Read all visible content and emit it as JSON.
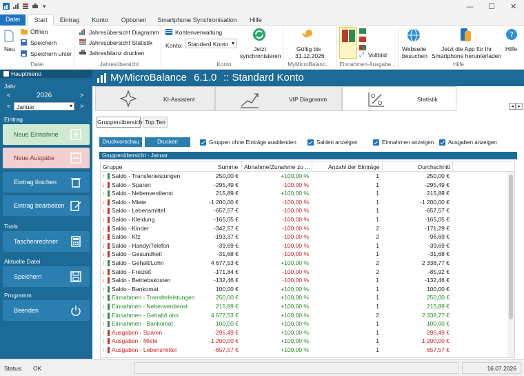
{
  "ribbon_tabs": [
    "Datei",
    "Start",
    "Eintrag",
    "Konto",
    "Optionen",
    "Smartphone Synchronisation",
    "Hilfe"
  ],
  "ribbon": {
    "neu": "Neu",
    "oeffnen": "Öffnen",
    "speichern": "Speichern",
    "speichern_unter": "Speichern unter",
    "grp_datei": "Datei",
    "jahr_diagramm": "Jahresübersicht Diagramm",
    "jahr_statistik": "Jahresübersicht Statistik",
    "jahresbilanz": "Jahresbilanz drucken",
    "grp_jahr": "Jahresübersicht",
    "kontenverwaltung": "Kontenverwaltung",
    "konto_label": "Konto:",
    "konto_value": "Standard Konto",
    "sync_1": "Jetzt",
    "sync_2": "synchronisieren",
    "grp_konto": "Konto",
    "gueltig_1": "Gültig bis",
    "gueltig_2": "31.12.2026",
    "grp_mmb": "MyMicroBalanc...",
    "vollbild": "Vollbild",
    "grp_ein": "Einnahmen-Ausgabe...",
    "webseite_1": "Webseite",
    "webseite_2": "besuchen",
    "app_1": "Jetzt die App für Ihr",
    "app_2": "Smartphone herunterladen",
    "hilfe": "Hilfe",
    "grp_hilfe": "Hilfe"
  },
  "sidebar": {
    "hauptmenue": "Hauptmenü",
    "jahr_label": "Jahr",
    "jahr_value": "2026",
    "monat_value": "Januar",
    "eintrag_label": "Eintrag",
    "neue_einnahme": "Neue Einnahme",
    "neue_ausgabe": "Neue Ausgabe",
    "eintrag_loeschen": "Eintrag löschen",
    "eintrag_bearbeiten": "Eintrag bearbeiten",
    "tools_label": "Tools",
    "taschenrechner": "Taschenrechner",
    "aktuelle_datei_label": "Aktuelle Datei",
    "speichern": "Speichern",
    "programm_label": "Programm",
    "beenden": "Beenden"
  },
  "banner": {
    "title": "MyMicroBalance",
    "version": "6.1.0",
    "account": ":: Standard Konto"
  },
  "cards": [
    "KI-Assistent",
    "VIP Diagramm",
    "Statistik"
  ],
  "subtabs": [
    "Gruppenübersicht",
    "Top Ten"
  ],
  "toolbar": {
    "druckvorschau": "Druckvorschau",
    "drucken": "Drucken",
    "opt_gruppen": "Gruppen ohne Einträge ausblenden",
    "opt_salden": "Salden anzeigen",
    "opt_einnahmen": "Einnahmen anzeigen",
    "opt_ausgaben": "Ausgaben anzeigen"
  },
  "table": {
    "caption": "Gruppenübersicht - Januar",
    "headers": [
      "Gruppe",
      "Summe",
      "Abnahme/Zunahme zu ...",
      "Anzahl der Einträge",
      "Durchschnitt"
    ],
    "rows": [
      {
        "arrow": "up",
        "color": "#2e8b57",
        "name": "Saldo - Transferleistungen",
        "sum": "250,00 €",
        "change": "+100,00 %",
        "count": "1",
        "avg": "250,00 €",
        "tone": "dark"
      },
      {
        "arrow": "down",
        "color": "#c0392b",
        "name": "Saldo - Sparen",
        "sum": "-295,49 €",
        "change": "-100,00 %",
        "count": "1",
        "avg": "-295,49 €",
        "tone": "dark"
      },
      {
        "arrow": "up",
        "color": "#2e8b57",
        "name": "Saldo - Nebenverdienst",
        "sum": "215,89 €",
        "change": "+100,00 %",
        "count": "1",
        "avg": "215,89 €",
        "tone": "dark"
      },
      {
        "arrow": "down",
        "color": "#c0392b",
        "name": "Saldo - Miete",
        "sum": "-1 200,00 €",
        "change": "-100,00 %",
        "count": "1",
        "avg": "-1 200,00 €",
        "tone": "dark"
      },
      {
        "arrow": "down",
        "color": "#c0392b",
        "name": "Saldo - Lebensmittel",
        "sum": "-657,57 €",
        "change": "-100,00 %",
        "count": "1",
        "avg": "-657,57 €",
        "tone": "dark"
      },
      {
        "arrow": "down",
        "color": "#c0392b",
        "name": "Saldo - Kleidung",
        "sum": "-165,05 €",
        "change": "-100,00 %",
        "count": "1",
        "avg": "-165,05 €",
        "tone": "dark"
      },
      {
        "arrow": "down",
        "color": "#c0392b",
        "name": "Saldo - Kinder",
        "sum": "-342,57 €",
        "change": "-100,00 %",
        "count": "2",
        "avg": "-171,29 €",
        "tone": "dark"
      },
      {
        "arrow": "down",
        "color": "#c0392b",
        "name": "Saldo - Kfz",
        "sum": "-193,37 €",
        "change": "-100,00 %",
        "count": "2",
        "avg": "-96,69 €",
        "tone": "dark"
      },
      {
        "arrow": "down",
        "color": "#c0392b",
        "name": "Saldo - Handy/Telefon",
        "sum": "-39,69 €",
        "change": "-100,00 %",
        "count": "1",
        "avg": "-39,69 €",
        "tone": "dark"
      },
      {
        "arrow": "down",
        "color": "#c0392b",
        "name": "Saldo - Gesundheit",
        "sum": "-31,68 €",
        "change": "-100,00 %",
        "count": "1",
        "avg": "-31,68 €",
        "tone": "dark"
      },
      {
        "arrow": "up",
        "color": "#2e8b57",
        "name": "Saldo - Gehalt/Lohn",
        "sum": "4 677,53 €",
        "change": "+100,00 %",
        "count": "2",
        "avg": "2 338,77 €",
        "tone": "dark"
      },
      {
        "arrow": "down",
        "color": "#c0392b",
        "name": "Saldo - Freizeit",
        "sum": "-171,84 €",
        "change": "-100,00 %",
        "count": "2",
        "avg": "-85,92 €",
        "tone": "dark"
      },
      {
        "arrow": "down",
        "color": "#c0392b",
        "name": "Saldo - Betriebskosten",
        "sum": "-132,46 €",
        "change": "-100,00 %",
        "count": "1",
        "avg": "-132,46 €",
        "tone": "dark"
      },
      {
        "arrow": "up",
        "color": "#2e8b57",
        "name": "Saldo - Bankomat",
        "sum": "100,00 €",
        "change": "+100,00 %",
        "count": "1",
        "avg": "100,00 €",
        "tone": "dark"
      },
      {
        "arrow": "up",
        "color": "#2e8b57",
        "name": "Einnahmen - Transferleistungen",
        "sum": "250,00 €",
        "change": "+100,00 %",
        "count": "1",
        "avg": "250,00 €",
        "tone": "green"
      },
      {
        "arrow": "up",
        "color": "#2e8b57",
        "name": "Einnahmen - Nebenverdienst",
        "sum": "215,89 €",
        "change": "+100,00 %",
        "count": "1",
        "avg": "215,89 €",
        "tone": "green"
      },
      {
        "arrow": "up",
        "color": "#2e8b57",
        "name": "Einnahmen - Gehalt/Lohn",
        "sum": "4 677,53 €",
        "change": "+100,00 %",
        "count": "2",
        "avg": "2 338,77 €",
        "tone": "green"
      },
      {
        "arrow": "up",
        "color": "#2e8b57",
        "name": "Einnahmen - Bankomat",
        "sum": "100,00 €",
        "change": "+100,00 %",
        "count": "1",
        "avg": "100,00 €",
        "tone": "green"
      },
      {
        "arrow": "up",
        "color": "#c0392b",
        "name": "Ausgaben - Sparen",
        "sum": "-295,49 €",
        "change": "+100,00 %",
        "count": "1",
        "avg": "295,49 €",
        "tone": "red"
      },
      {
        "arrow": "up",
        "color": "#c0392b",
        "name": "Ausgaben - Miete",
        "sum": "-1 200,00 €",
        "change": "+100,00 %",
        "count": "1",
        "avg": "1 200,00 €",
        "tone": "red"
      },
      {
        "arrow": "up",
        "color": "#c0392b",
        "name": "Ausgaben - Lebensmittel",
        "sum": "-657,57 €",
        "change": "+100,00 %",
        "count": "1",
        "avg": "657,57 €",
        "tone": "red"
      }
    ]
  },
  "status": {
    "label": "Status:",
    "value": "OK",
    "date": "16.07.2026"
  },
  "colors": {
    "accent": "#1e73be",
    "sidebar": "#1c6a96",
    "income_btn": "#cfe9d3",
    "expense_btn": "#f2d0d0",
    "nav_btn": "#2b7fb0"
  }
}
